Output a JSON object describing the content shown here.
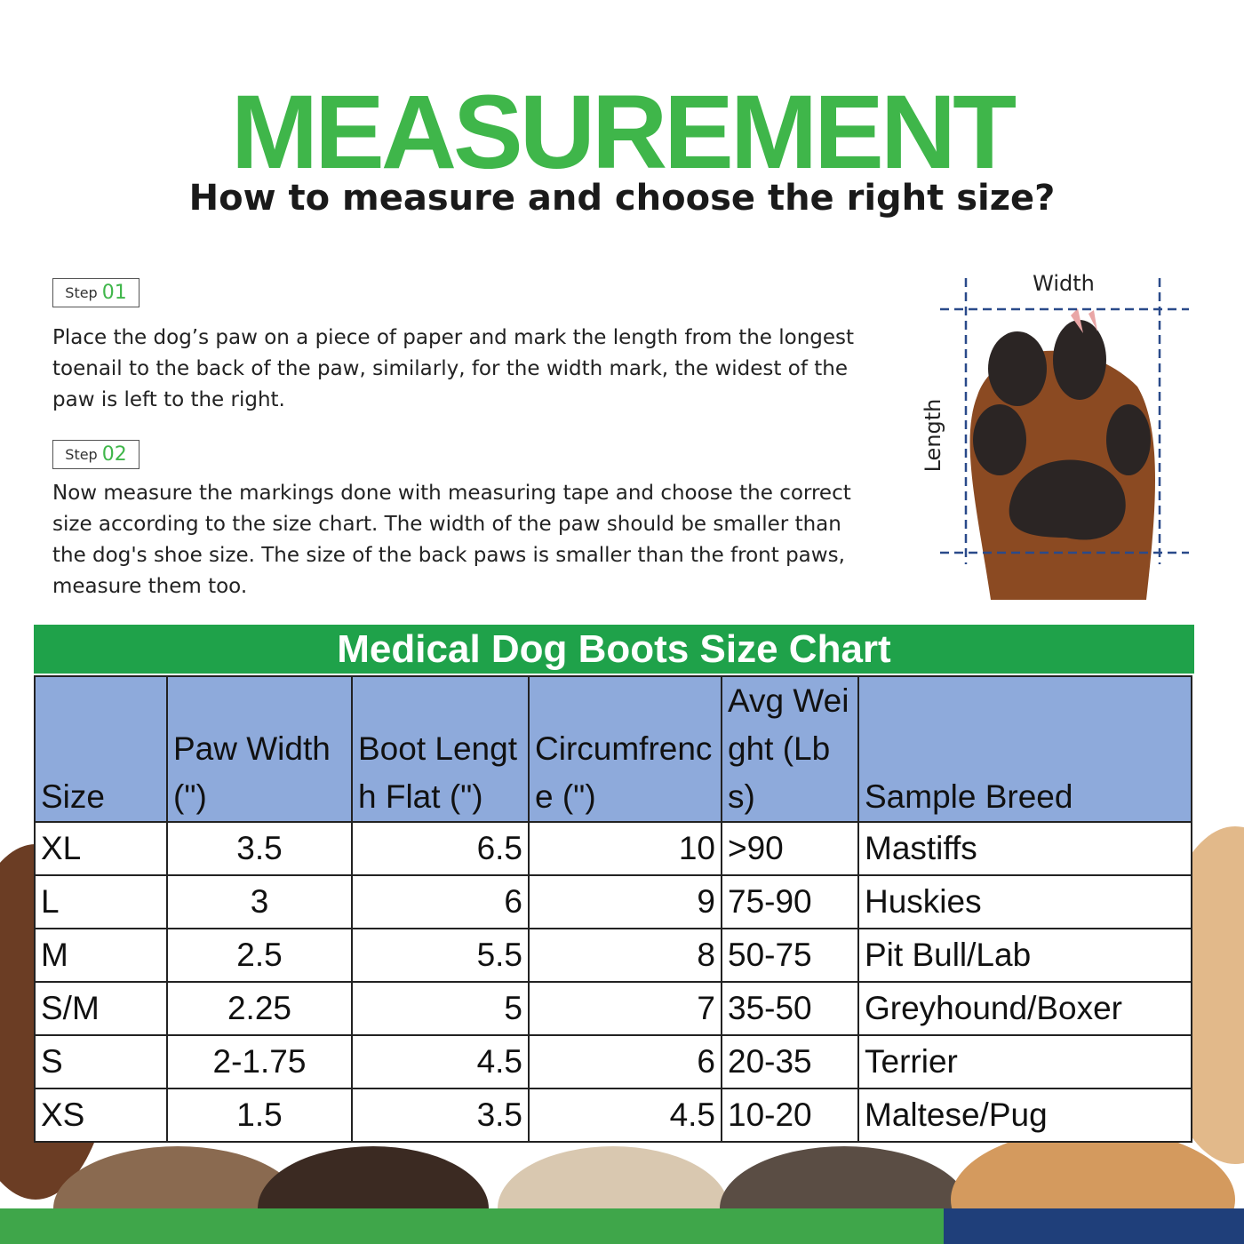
{
  "header": {
    "title": "MEASUREMENT",
    "subtitle": "How to measure and choose the right size?"
  },
  "steps": [
    {
      "label": "Step",
      "number": "01",
      "text": "Place the dog’s paw on a piece of paper and mark the length from the longest toenail to the back of the paw, similarly, for the width mark, the widest of the paw is left to the right."
    },
    {
      "label": "Step",
      "number": "02",
      "text": "Now measure the markings done with measuring tape and choose the correct size according to the size chart. The width of the paw should be smaller than the dog's shoe size. The size of the back paws is smaller than the front paws, measure them too."
    }
  ],
  "diagram": {
    "width_label": "Width",
    "length_label": "Length"
  },
  "table": {
    "title": "Medical Dog Boots Size Chart",
    "columns": [
      "Size",
      "Paw Width (\")",
      "Boot Length Flat (\")",
      "Circumfrence (\")",
      "Avg Weight (Lbs)",
      "Sample Breed"
    ],
    "rows": [
      [
        "XL",
        "3.5",
        "6.5",
        "10",
        ">90",
        "Mastiffs"
      ],
      [
        "L",
        "3",
        "6",
        "9",
        "75-90",
        "Huskies"
      ],
      [
        "M",
        "2.5",
        "5.5",
        "8",
        "50-75",
        "Pit Bull/Lab"
      ],
      [
        "S/M",
        "2.25",
        "5",
        "7",
        "35-50",
        "Greyhound/Boxer"
      ],
      [
        "S",
        "2-1.75",
        "4.5",
        "6",
        "20-35",
        "Terrier"
      ],
      [
        "XS",
        "1.5",
        "3.5",
        "4.5",
        "10-20",
        "Maltese/Pug"
      ]
    ]
  }
}
